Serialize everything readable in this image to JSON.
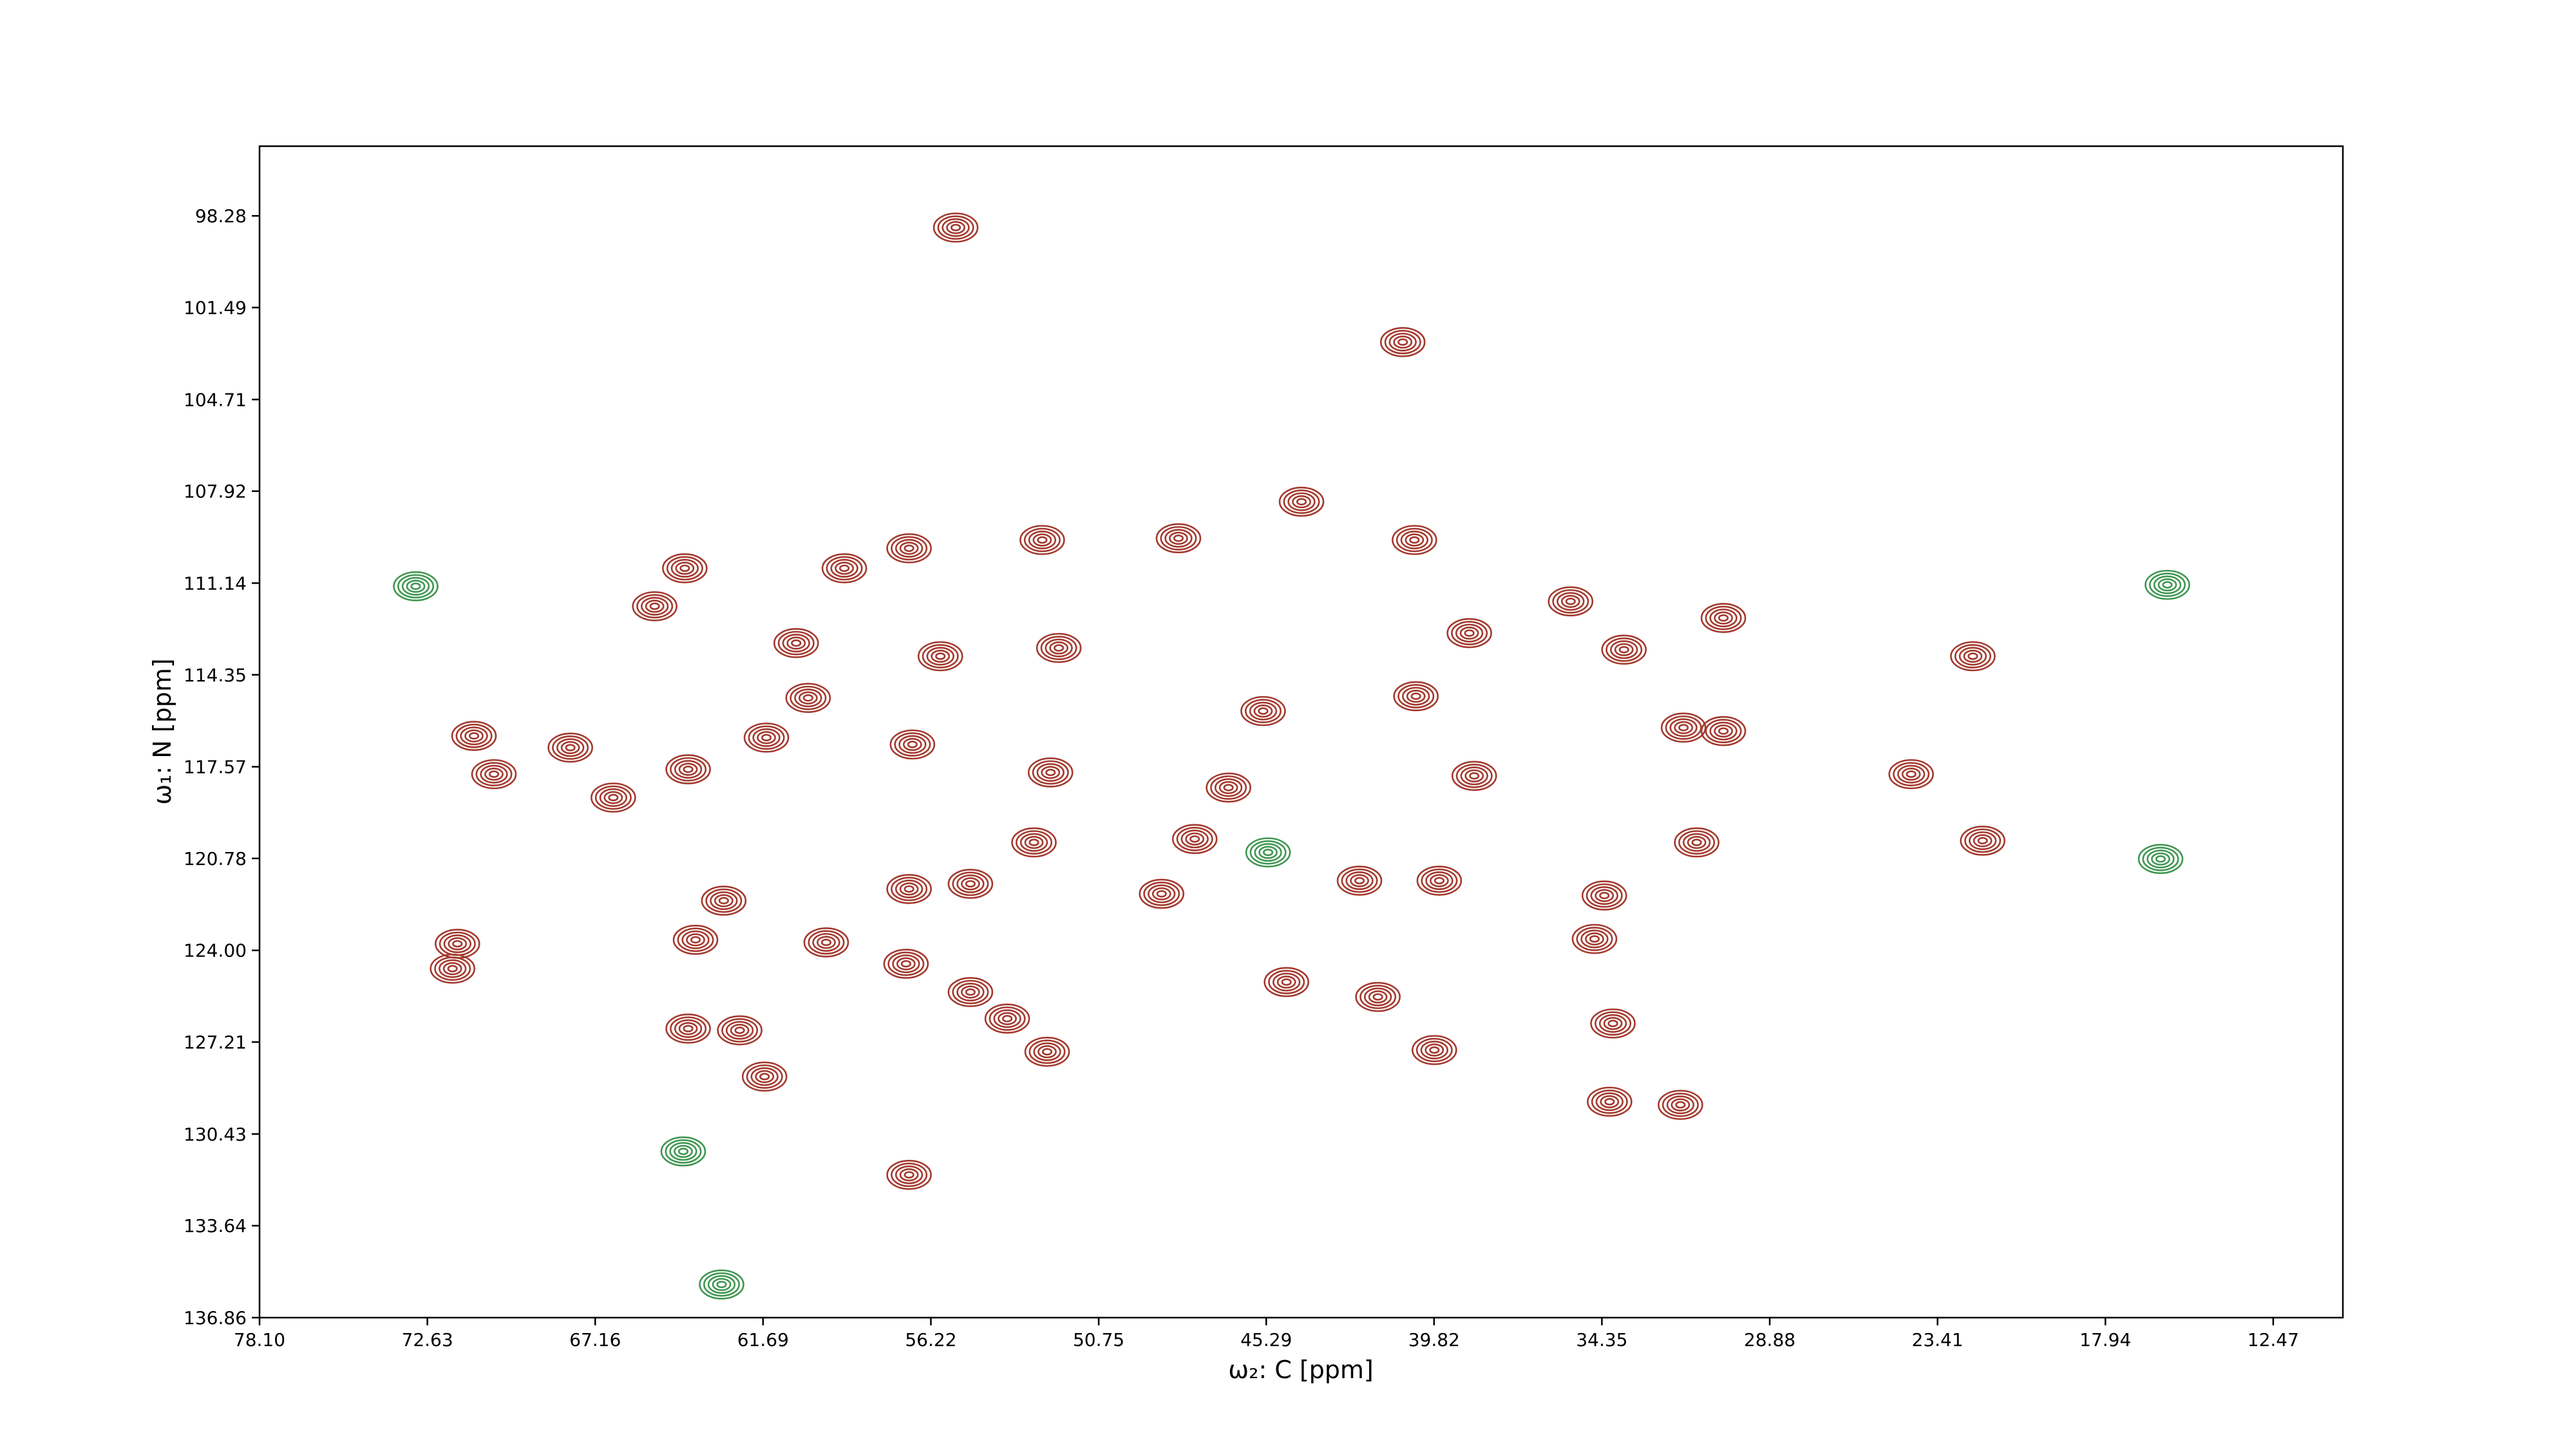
{
  "chart_data": {
    "type": "contour",
    "xlabel": "ω₂: C [ppm]",
    "ylabel": "ω₁: N [ppm]",
    "xlim": [
      78.1,
      10.2
    ],
    "ylim": [
      95.84,
      136.86
    ],
    "xticks": [
      {
        "value": 78.1,
        "label": "78.10"
      },
      72.63,
      67.16,
      61.69,
      56.22,
      50.75,
      45.29,
      39.82,
      34.35,
      28.88,
      23.41,
      17.94,
      12.47
    ],
    "yticks": [
      98.28,
      101.49,
      104.71,
      107.92,
      111.14,
      114.35,
      117.57,
      120.78,
      {
        "value": 124.0,
        "label": "124.00"
      },
      127.21,
      130.43,
      133.64,
      136.86
    ],
    "levels": 5,
    "positive": {
      "color": "#a3392e",
      "x": [
        55.41,
        40.84,
        44.14,
        52.59,
        48.15,
        40.46,
        59.04,
        64.24,
        65.22,
        56.93,
        60.61,
        52.05,
        38.67,
        35.37,
        30.39,
        33.63,
        22.26,
        55.91,
        60.22,
        45.39,
        40.41,
        31.69,
        30.39,
        24.27,
        70.46,
        64.13,
        61.58,
        56.82,
        52.32,
        46.52,
        38.51,
        66.57,
        47.62,
        52.86,
        31.26,
        21.94,
        39.65,
        42.25,
        34.27,
        56.93,
        54.93,
        62.97,
        63.89,
        57.03,
        59.63,
        34.59,
        44.63,
        41.65,
        54.93,
        53.73,
        64.13,
        62.45,
        33.99,
        39.81,
        52.43,
        61.64,
        34.1,
        31.79,
        56.93,
        71.65,
        71.81,
        71.11,
        67.97,
        48.7
      ],
      "y": [
        98.69,
        102.7,
        108.29,
        109.63,
        109.57,
        109.63,
        110.62,
        110.62,
        111.95,
        109.92,
        113.24,
        113.41,
        112.89,
        111.78,
        112.36,
        113.47,
        113.7,
        113.7,
        115.16,
        115.62,
        115.1,
        116.2,
        116.32,
        117.83,
        117.83,
        117.66,
        116.55,
        116.79,
        117.77,
        118.3,
        117.89,
        118.65,
        120.1,
        120.22,
        120.22,
        120.16,
        121.56,
        121.56,
        122.08,
        121.85,
        121.67,
        122.26,
        123.63,
        124.47,
        123.72,
        123.6,
        125.11,
        125.63,
        125.46,
        126.39,
        126.74,
        126.8,
        126.56,
        127.49,
        127.55,
        128.42,
        129.3,
        129.41,
        131.86,
        123.77,
        124.64,
        116.49,
        116.9,
        122.02
      ]
    },
    "negative": {
      "color": "#3f9651",
      "x": [
        15.92,
        73.01,
        16.14,
        45.23,
        64.29,
        63.04
      ],
      "y": [
        111.2,
        111.25,
        120.8,
        120.57,
        131.04,
        135.7
      ]
    }
  }
}
